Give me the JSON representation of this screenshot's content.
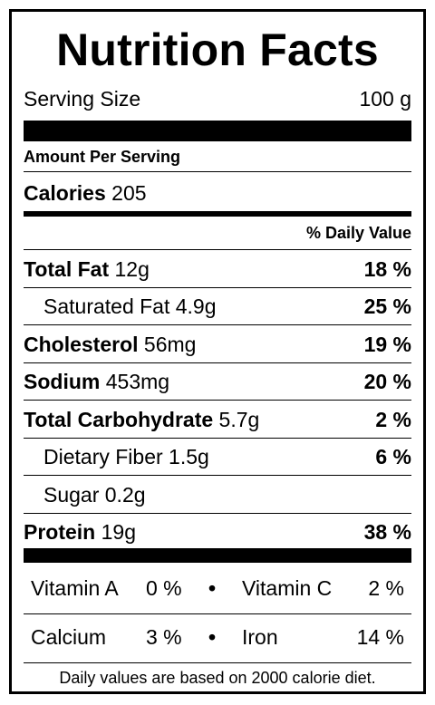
{
  "title": "Nutrition Facts",
  "serving": {
    "label": "Serving Size",
    "value": "100 g"
  },
  "amount_per_serving": "Amount Per Serving",
  "calories": {
    "label": "Calories",
    "value": "205"
  },
  "daily_value_header": "% Daily Value",
  "nutrients": [
    {
      "label": "Total Fat",
      "amount": "12g",
      "dv": "18 %"
    },
    {
      "label": "Saturated Fat",
      "amount": "4.9g",
      "dv": "25 %"
    },
    {
      "label": "Cholesterol",
      "amount": "56mg",
      "dv": "19 %"
    },
    {
      "label": "Sodium",
      "amount": "453mg",
      "dv": "20 %"
    },
    {
      "label": "Total Carbohydrate",
      "amount": "5.7g",
      "dv": "2 %"
    },
    {
      "label": "Dietary Fiber",
      "amount": "1.5g",
      "dv": "6 %"
    },
    {
      "label": "Sugar",
      "amount": "0.2g",
      "dv": ""
    },
    {
      "label": "Protein",
      "amount": "19g",
      "dv": "38 %"
    }
  ],
  "vitamins": [
    {
      "left_label": "Vitamin A",
      "left_value": "0 %",
      "bullet": "•",
      "right_label": "Vitamin C",
      "right_value": "2 %"
    },
    {
      "left_label": "Calcium",
      "left_value": "3 %",
      "bullet": "•",
      "right_label": "Iron",
      "right_value": "14 %"
    }
  ],
  "footnote": "Daily values are based on 2000 calorie diet."
}
